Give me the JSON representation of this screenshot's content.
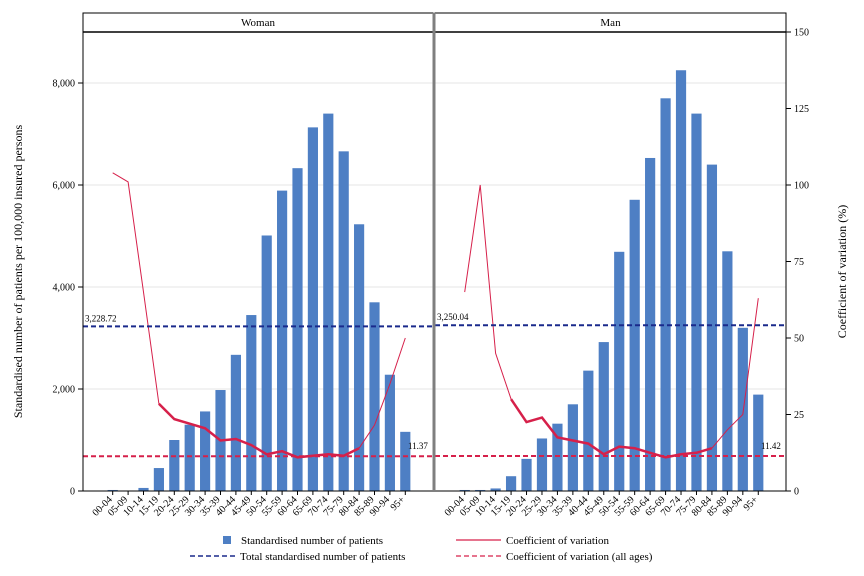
{
  "chart_data": {
    "type": "bar",
    "panels": [
      {
        "title": "Woman",
        "bars": [
          20,
          10,
          60,
          450,
          1000,
          1300,
          1560,
          1980,
          2670,
          3450,
          5010,
          5890,
          6330,
          7130,
          7400,
          6660,
          5230,
          3700,
          2280,
          1160
        ],
        "cv": [
          null,
          null,
          null,
          null,
          23.5,
          22,
          20.5,
          16.5,
          17,
          15,
          12,
          13,
          11,
          11.5,
          12,
          11.5,
          14,
          21.5,
          35,
          50
        ],
        "cv_early": [
          104,
          101,
          65,
          28.5
        ],
        "total_standardised": 3228.72,
        "total_label": "3,228.72",
        "cv_all_ages": 11.37,
        "cv_all_ages_label": "11.37"
      },
      {
        "title": "Man",
        "bars": [
          20,
          20,
          50,
          290,
          630,
          1030,
          1320,
          1700,
          2360,
          2920,
          4690,
          5710,
          6530,
          7700,
          8250,
          7400,
          6400,
          4700,
          3200,
          1890
        ],
        "cv": [
          null,
          null,
          null,
          null,
          22.5,
          24,
          17.5,
          16.5,
          15.5,
          12,
          14.5,
          14,
          12.5,
          11,
          12,
          12.5,
          14,
          20,
          25,
          63
        ],
        "cv_early": [
          65,
          100,
          45,
          30
        ],
        "total_standardised": 3250.04,
        "total_label": "3,250.04",
        "cv_all_ages": 11.42,
        "cv_all_ages_label": "11.42"
      }
    ],
    "categories": [
      "00-04",
      "05-09",
      "10-14",
      "15-19",
      "20-24",
      "25-29",
      "30-34",
      "35-39",
      "40-44",
      "45-49",
      "50-54",
      "55-59",
      "60-64",
      "65-69",
      "70-74",
      "75-79",
      "80-84",
      "85-89",
      "90-94",
      "95+"
    ],
    "ylabel": "Standardised number of patients per 100,000 insured persons",
    "y2label": "Coefficient of variation (%)",
    "ylim": [
      0,
      9000
    ],
    "y2lim": [
      0,
      150
    ],
    "yticks": [
      0,
      2000,
      4000,
      6000,
      8000
    ],
    "ytick_labels": [
      "0",
      "2,000",
      "4,000",
      "6,000",
      "8,000"
    ],
    "y2ticks": [
      0,
      25,
      50,
      75,
      100,
      125,
      150
    ],
    "y2tick_labels": [
      "0",
      "25",
      "50",
      "75",
      "100",
      "125",
      "150"
    ],
    "grid": true,
    "legend_position": "bottom",
    "legend": [
      {
        "key": "bars",
        "label": "Standardised number of patients"
      },
      {
        "key": "cv",
        "label": "Coefficient of variation"
      },
      {
        "key": "total",
        "label": "Total standardised number of patients"
      },
      {
        "key": "cv_all",
        "label": "Coefficient of variation (all ages)"
      }
    ],
    "colors": {
      "bar": "#4e7fc4",
      "cv_line": "#d6204a",
      "total_line": "#1a2a8c",
      "cv_all_line": "#d6204a",
      "grid": "#e6e6e6"
    }
  }
}
